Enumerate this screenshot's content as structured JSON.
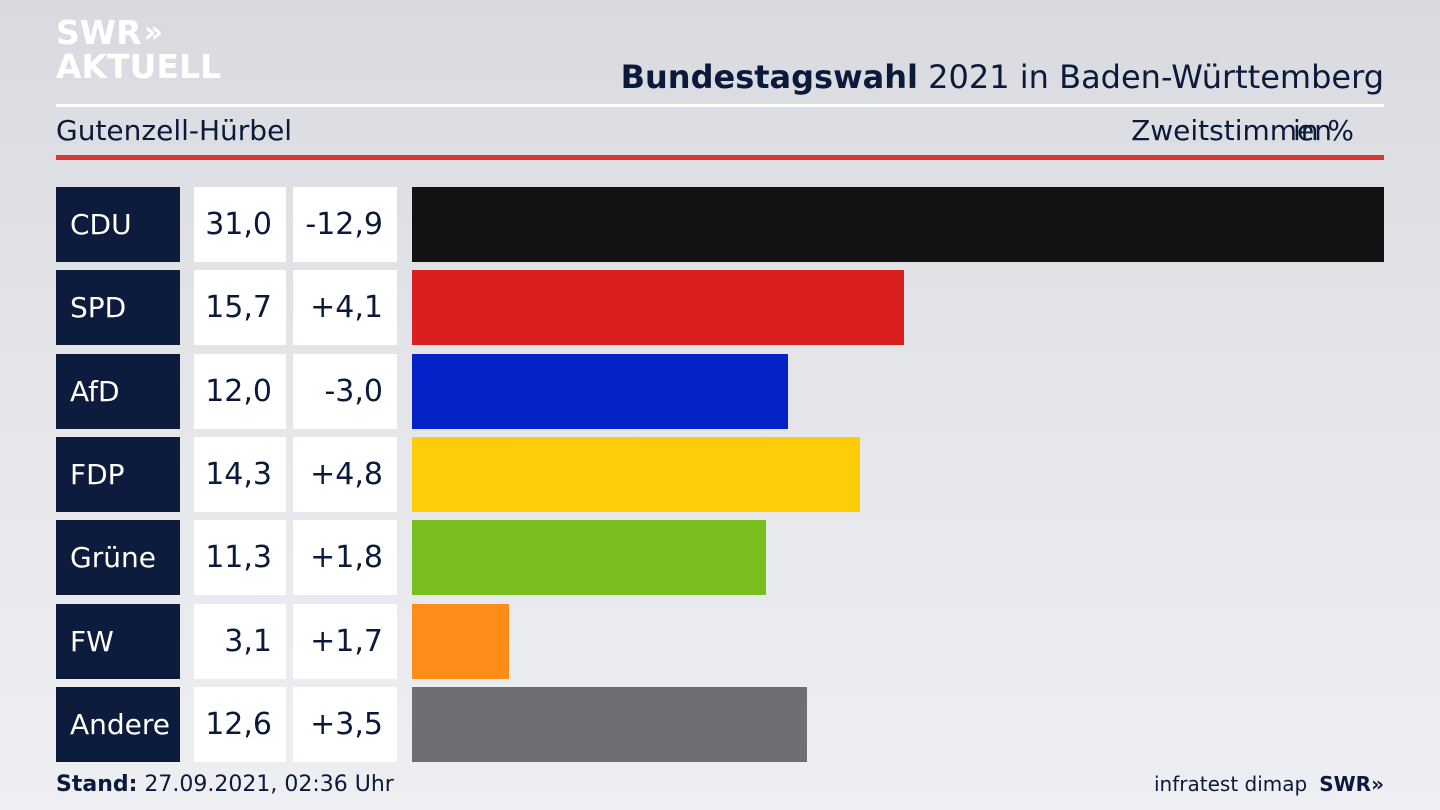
{
  "logo": {
    "line1": "SWR",
    "chevrons": "»",
    "line2": "AKTUELL"
  },
  "header": {
    "title_bold": "Bundestagswahl",
    "title_rest": "2021 in Baden-Württemberg",
    "subtitle": "Gutenzell-Hürbel",
    "unit_label": "Zweitstimmen",
    "unit": "in %"
  },
  "colors": {
    "accent_red": "#d6372e",
    "label_bg": "#0d1c3d"
  },
  "chart_data": {
    "type": "bar",
    "orientation": "horizontal",
    "categories": [
      "CDU",
      "SPD",
      "AfD",
      "FDP",
      "Grüne",
      "FW",
      "Andere"
    ],
    "values": [
      31.0,
      15.7,
      12.0,
      14.3,
      11.3,
      3.1,
      12.6
    ],
    "value_labels": [
      "31,0",
      "15,7",
      "12,0",
      "14,3",
      "11,3",
      "3,1",
      "12,6"
    ],
    "change_labels": [
      "-12,9",
      "+4,1",
      "-3,0",
      "+4,8",
      "+1,8",
      "+1,7",
      "+3,5"
    ],
    "colors": [
      "#121212",
      "#d9201e",
      "#0521c8",
      "#fdcd0a",
      "#78be1e",
      "#fd8c18",
      "#6e6f72"
    ],
    "xlim": [
      0,
      31.0
    ]
  },
  "footer": {
    "stand_label": "Stand:",
    "stand_value": "27.09.2021, 02:36 Uhr",
    "source": "infratest dimap",
    "brand": "SWR»"
  }
}
